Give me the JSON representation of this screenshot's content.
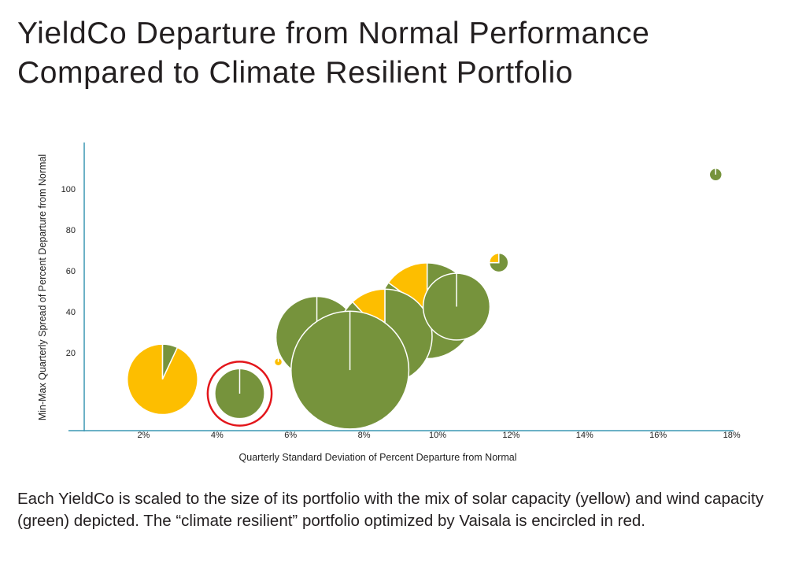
{
  "title": {
    "line1": "YieldCo Departure from Normal Performance",
    "line2": "Compared to Climate Resilient Portfolio"
  },
  "caption": "Each YieldCo is scaled to the size of its portfolio with the mix of solar capacity (yellow) and wind capacity (green) depicted. The “climate resilient” portfolio optimized by Vaisala is encircled in red.",
  "chart_data": {
    "type": "scatter",
    "subtype": "bubble-pie",
    "title": "YieldCo Departure from Normal Performance Compared to Climate Resilient Portfolio",
    "xlabel": "Quarterly Standard Deviation of Percent Departure from Normal",
    "ylabel": "Min-Max Quarterly Spread of Percent Departure from Normal",
    "xlim": [
      0,
      18.5
    ],
    "ylim": [
      -18,
      122
    ],
    "x_ticks": [
      {
        "value": 2,
        "label": "2%"
      },
      {
        "value": 4,
        "label": "4%"
      },
      {
        "value": 6,
        "label": "6%"
      },
      {
        "value": 8,
        "label": "8%"
      },
      {
        "value": 10,
        "label": "10%"
      },
      {
        "value": 12,
        "label": "12%"
      },
      {
        "value": 14,
        "label": "14%"
      },
      {
        "value": 16,
        "label": "16%"
      },
      {
        "value": 18,
        "label": "18%"
      }
    ],
    "y_ticks": [
      {
        "value": 20,
        "label": "20"
      },
      {
        "value": 40,
        "label": "40"
      },
      {
        "value": 60,
        "label": "60"
      },
      {
        "value": 80,
        "label": "80"
      },
      {
        "value": 100,
        "label": "100"
      }
    ],
    "grid": false,
    "colors": {
      "solar": "#fdbe00",
      "wind": "#76933c",
      "highlight": "#e3161b",
      "axis": "#3b97b4"
    },
    "legend_series": [
      "solar capacity (yellow)",
      "wind capacity (green)"
    ],
    "points": [
      {
        "x": 2.6,
        "y": 7,
        "relative_size": 20,
        "wind_share": 0.07,
        "highlighted": false
      },
      {
        "x": 4.7,
        "y": 0,
        "relative_size": 10,
        "wind_share": 1.0,
        "highlighted": true
      },
      {
        "x": 5.75,
        "y": 15.5,
        "relative_size": 0.25,
        "wind_share": 0.0,
        "highlighted": false
      },
      {
        "x": 9.8,
        "y": 40.5,
        "relative_size": 37,
        "wind_share": 0.85,
        "highlighted": false
      },
      {
        "x": 6.8,
        "y": 27.5,
        "relative_size": 27,
        "wind_share": 1.0,
        "highlighted": false
      },
      {
        "x": 8.65,
        "y": 28,
        "relative_size": 36,
        "wind_share": 0.88,
        "highlighted": false
      },
      {
        "x": 10.6,
        "y": 42.5,
        "relative_size": 18,
        "wind_share": 1.0,
        "highlighted": false
      },
      {
        "x": 7.7,
        "y": 11.5,
        "relative_size": 56,
        "wind_share": 1.0,
        "highlighted": false
      },
      {
        "x": 11.75,
        "y": 64,
        "relative_size": 1.44,
        "wind_share": 0.75,
        "highlighted": false
      },
      {
        "x": 17.65,
        "y": 107,
        "relative_size": 0.64,
        "wind_share": 1.0,
        "highlighted": false
      }
    ]
  }
}
